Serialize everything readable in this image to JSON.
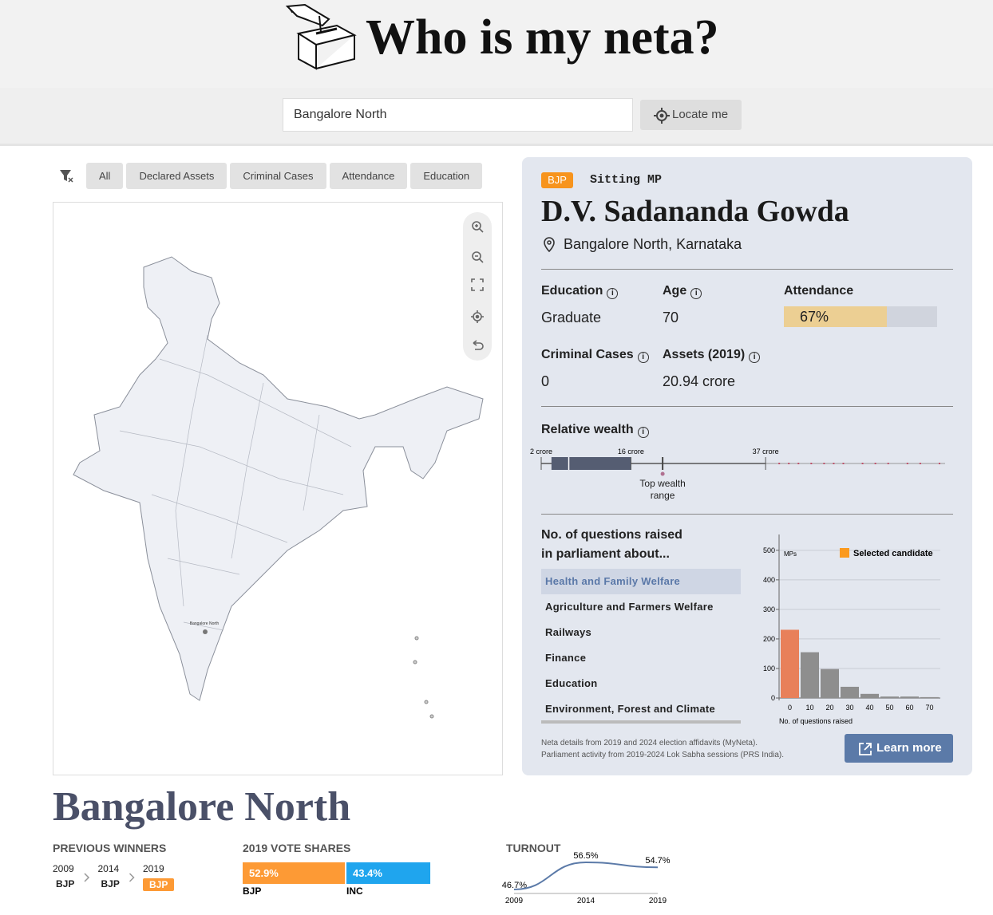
{
  "header": {
    "title": "Who is my neta?"
  },
  "search": {
    "query": "Bangalore North",
    "locate_button": "Locate me"
  },
  "filters": [
    "All",
    "Declared Assets",
    "Criminal Cases",
    "Attendance",
    "Education"
  ],
  "map": {
    "label": "Bangalore North"
  },
  "profile": {
    "party": "BJP",
    "status": "Sitting MP",
    "name": "D.V. Sadananda Gowda",
    "location": "Bangalore North, Karnataka",
    "stats": {
      "education": {
        "label": "Education",
        "value": "Graduate"
      },
      "age": {
        "label": "Age",
        "value": 70
      },
      "attendance": {
        "label": "Attendance",
        "value": 67,
        "value_label": "67%",
        "color": "#eccf93"
      },
      "criminal_cases": {
        "label": "Criminal Cases",
        "value": 0
      },
      "assets": {
        "label": "Assets (2019)",
        "value": "20.94 crore"
      }
    }
  },
  "wealth": {
    "type": "box",
    "title": "Relative wealth",
    "xlim": [
      2,
      65
    ],
    "xticks": [
      {
        "value": 2,
        "label": "2 crore"
      },
      {
        "value": 16,
        "label": "16 crore"
      },
      {
        "value": 37,
        "label": "37 crore"
      }
    ],
    "whisker_low": 2,
    "q1": 3.6,
    "median": 6.3,
    "q3": 16,
    "whisker_high": 37,
    "outliers": [
      39,
      40.5,
      42,
      44,
      46,
      47.5,
      49,
      52,
      54,
      56,
      59,
      61,
      64
    ],
    "candidate": 20.94,
    "candidate_label": "Top wealth range"
  },
  "questions": {
    "title": "No. of questions raised in parliament about...",
    "topics": [
      "Health and Family Welfare",
      "Agriculture and Farmers Welfare",
      "Railways",
      "Finance",
      "Education",
      "Environment, Forest and Climate Change"
    ],
    "histogram": {
      "type": "bar",
      "categories": [
        "0",
        "10",
        "20",
        "30",
        "40",
        "50",
        "60",
        "70"
      ],
      "values": [
        231,
        155,
        98,
        38,
        14,
        5,
        5,
        3
      ],
      "colors": [
        "#e8805a",
        "#8e8e8e",
        "#8e8e8e",
        "#8e8e8e",
        "#8e8e8e",
        "#8e8e8e",
        "#8e8e8e",
        "#8e8e8e"
      ],
      "ylim": [
        0,
        540
      ],
      "yticks": [
        0,
        100,
        200,
        300,
        400,
        500
      ],
      "ylabel": "MPs",
      "xlabel": "No. of questions raised",
      "legend": {
        "label": "Selected candidate",
        "color": "#fb9a1e"
      }
    }
  },
  "footnote": [
    "Neta details from 2019 and 2024 election affidavits (MyNeta).",
    "Parliament activity from 2019-2024 Lok Sabha sessions (PRS India)."
  ],
  "learn_more": "Learn more",
  "constituency": {
    "name": "Bangalore North",
    "previous_winners": {
      "heading": "PREVIOUS WINNERS",
      "years": [
        2009,
        2014,
        2019
      ],
      "parties": [
        "BJP",
        "BJP",
        "BJP"
      ]
    },
    "vote_shares": {
      "type": "bar",
      "heading": "2019 VOTE SHARES",
      "series": [
        {
          "name": "BJP",
          "color": "#fd9a35",
          "values": [
            52.9
          ],
          "value_labels": [
            "52.9%"
          ]
        },
        {
          "name": "INC",
          "color": "#1fa5ee",
          "values": [
            43.4
          ],
          "value_labels": [
            "43.4%"
          ]
        }
      ]
    },
    "turnout": {
      "type": "line",
      "heading": "TURNOUT",
      "x": [
        2009,
        2014,
        2019
      ],
      "values": [
        46.7,
        56.5,
        54.7
      ],
      "value_labels": [
        "46.7%",
        "56.5%",
        "54.7%"
      ],
      "color": "#5b7aa8"
    }
  }
}
